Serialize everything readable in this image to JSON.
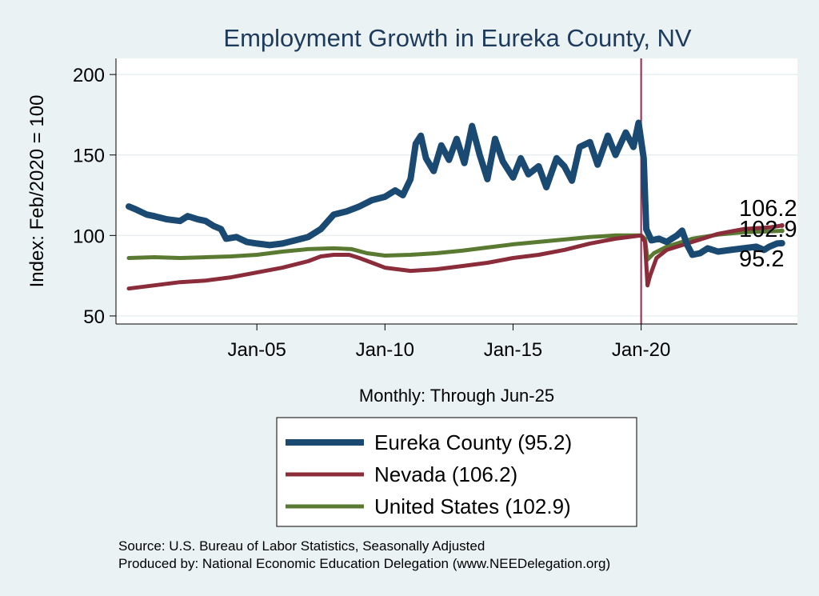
{
  "chart_data": {
    "type": "line",
    "title": "Employment Growth in Eureka  County, NV",
    "xlabel": "Monthly: Through Jun-25",
    "ylabel": "Index: Feb/2020 = 100",
    "ylim": [
      45,
      210
    ],
    "yticks": [
      50,
      100,
      150,
      200
    ],
    "xlim": [
      1999.5,
      2026.1
    ],
    "xticks": [
      {
        "value": 2005,
        "label": "Jan-05"
      },
      {
        "value": 2010,
        "label": "Jan-10"
      },
      {
        "value": 2015,
        "label": "Jan-15"
      },
      {
        "value": 2020,
        "label": "Jan-20"
      }
    ],
    "vline": {
      "x": 2020.0,
      "color": "#a0224a"
    },
    "grid": true,
    "legend_position": "bottom",
    "series": [
      {
        "name": "Eureka  County (95.2)",
        "color": "#1a4a72",
        "width": 8,
        "end_value": "95.2",
        "points": [
          [
            2000.0,
            118
          ],
          [
            2000.3,
            116
          ],
          [
            2000.7,
            113
          ],
          [
            2001.0,
            112
          ],
          [
            2001.5,
            110
          ],
          [
            2002.0,
            109
          ],
          [
            2002.3,
            112
          ],
          [
            2002.7,
            110
          ],
          [
            2003.0,
            109
          ],
          [
            2003.3,
            106
          ],
          [
            2003.6,
            104
          ],
          [
            2003.8,
            98
          ],
          [
            2004.2,
            99
          ],
          [
            2004.6,
            96
          ],
          [
            2005.0,
            95
          ],
          [
            2005.5,
            94
          ],
          [
            2006.0,
            95
          ],
          [
            2006.5,
            97
          ],
          [
            2007.0,
            99
          ],
          [
            2007.5,
            104
          ],
          [
            2008.0,
            113
          ],
          [
            2008.5,
            115
          ],
          [
            2009.0,
            118
          ],
          [
            2009.5,
            122
          ],
          [
            2010.0,
            124
          ],
          [
            2010.4,
            128
          ],
          [
            2010.7,
            125
          ],
          [
            2011.0,
            135
          ],
          [
            2011.2,
            157
          ],
          [
            2011.4,
            162
          ],
          [
            2011.6,
            148
          ],
          [
            2011.9,
            140
          ],
          [
            2012.2,
            156
          ],
          [
            2012.5,
            147
          ],
          [
            2012.8,
            160
          ],
          [
            2013.1,
            145
          ],
          [
            2013.4,
            168
          ],
          [
            2013.7,
            150
          ],
          [
            2014.0,
            135
          ],
          [
            2014.3,
            160
          ],
          [
            2014.6,
            146
          ],
          [
            2015.0,
            136
          ],
          [
            2015.3,
            148
          ],
          [
            2015.6,
            138
          ],
          [
            2016.0,
            143
          ],
          [
            2016.3,
            130
          ],
          [
            2016.7,
            148
          ],
          [
            2017.0,
            143
          ],
          [
            2017.3,
            134
          ],
          [
            2017.6,
            155
          ],
          [
            2018.0,
            158
          ],
          [
            2018.3,
            144
          ],
          [
            2018.7,
            162
          ],
          [
            2019.0,
            150
          ],
          [
            2019.4,
            164
          ],
          [
            2019.7,
            155
          ],
          [
            2019.9,
            170
          ],
          [
            2020.1,
            148
          ],
          [
            2020.2,
            104
          ],
          [
            2020.4,
            97
          ],
          [
            2020.7,
            98
          ],
          [
            2021.0,
            96
          ],
          [
            2021.4,
            100
          ],
          [
            2021.6,
            103
          ],
          [
            2021.8,
            94
          ],
          [
            2022.0,
            88
          ],
          [
            2022.3,
            89
          ],
          [
            2022.6,
            92
          ],
          [
            2023.0,
            90
          ],
          [
            2023.5,
            91
          ],
          [
            2024.0,
            92
          ],
          [
            2024.5,
            93
          ],
          [
            2024.8,
            91
          ],
          [
            2025.0,
            93
          ],
          [
            2025.3,
            95
          ],
          [
            2025.5,
            95.2
          ]
        ]
      },
      {
        "name": "Nevada (106.2)",
        "color": "#8b2c3a",
        "width": 5,
        "end_value": "106.2",
        "points": [
          [
            2000.0,
            67
          ],
          [
            2001.0,
            69
          ],
          [
            2002.0,
            71
          ],
          [
            2003.0,
            72
          ],
          [
            2004.0,
            74
          ],
          [
            2005.0,
            77
          ],
          [
            2006.0,
            80
          ],
          [
            2007.0,
            84
          ],
          [
            2007.5,
            87
          ],
          [
            2008.0,
            88
          ],
          [
            2008.6,
            88
          ],
          [
            2009.0,
            86
          ],
          [
            2009.5,
            83
          ],
          [
            2010.0,
            80
          ],
          [
            2010.5,
            79
          ],
          [
            2011.0,
            78
          ],
          [
            2012.0,
            79
          ],
          [
            2013.0,
            81
          ],
          [
            2014.0,
            83
          ],
          [
            2015.0,
            86
          ],
          [
            2016.0,
            88
          ],
          [
            2017.0,
            91
          ],
          [
            2018.0,
            95
          ],
          [
            2019.0,
            98
          ],
          [
            2020.0,
            100
          ],
          [
            2020.15,
            96
          ],
          [
            2020.25,
            69
          ],
          [
            2020.35,
            75
          ],
          [
            2020.6,
            86
          ],
          [
            2021.0,
            91
          ],
          [
            2022.0,
            96
          ],
          [
            2023.0,
            101
          ],
          [
            2024.0,
            104
          ],
          [
            2025.0,
            105
          ],
          [
            2025.5,
            106.2
          ]
        ]
      },
      {
        "name": "United States (102.9)",
        "color": "#5a7a32",
        "width": 5,
        "end_value": "102.9",
        "points": [
          [
            2000.0,
            86
          ],
          [
            2001.0,
            86.5
          ],
          [
            2002.0,
            86
          ],
          [
            2003.0,
            86.5
          ],
          [
            2004.0,
            87
          ],
          [
            2005.0,
            88
          ],
          [
            2006.0,
            90
          ],
          [
            2007.0,
            91.5
          ],
          [
            2008.0,
            92
          ],
          [
            2008.7,
            91.5
          ],
          [
            2009.3,
            89
          ],
          [
            2010.0,
            87.5
          ],
          [
            2011.0,
            88
          ],
          [
            2012.0,
            89
          ],
          [
            2013.0,
            90.5
          ],
          [
            2014.0,
            92.5
          ],
          [
            2015.0,
            94.5
          ],
          [
            2016.0,
            96
          ],
          [
            2017.0,
            97.5
          ],
          [
            2018.0,
            99
          ],
          [
            2019.0,
            100
          ],
          [
            2020.0,
            100
          ],
          [
            2020.15,
            98
          ],
          [
            2020.25,
            85
          ],
          [
            2020.5,
            89
          ],
          [
            2021.0,
            93
          ],
          [
            2022.0,
            98
          ],
          [
            2023.0,
            100.5
          ],
          [
            2024.0,
            102
          ],
          [
            2025.0,
            102.5
          ],
          [
            2025.5,
            102.9
          ]
        ]
      }
    ]
  },
  "notes": {
    "source": "Source: U.S. Bureau of Labor Statistics, Seasonally Adjusted",
    "produced_by": "Produced by: National Economic Education Delegation (www.NEEDelegation.org)"
  }
}
